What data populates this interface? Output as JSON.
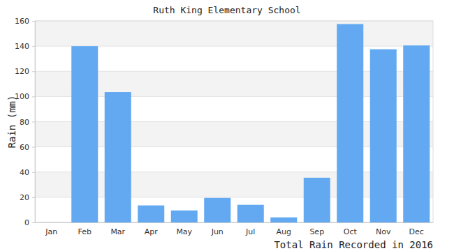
{
  "chart_data": {
    "type": "bar",
    "title": "Ruth King Elementary School",
    "x_label": "Total Rain Recorded in 2016",
    "y_label": "Rain (mm)",
    "categories": [
      "Jan",
      "Feb",
      "Mar",
      "Apr",
      "May",
      "Jun",
      "Jul",
      "Aug",
      "Sep",
      "Oct",
      "Nov",
      "Dec"
    ],
    "values": [
      0,
      140,
      103.5,
      13.5,
      9.5,
      19.5,
      14,
      4,
      35.5,
      157.5,
      137.5,
      140.5
    ],
    "color": "#62a9f2",
    "ylim": [
      0,
      160
    ],
    "yticks": [
      0,
      20,
      40,
      60,
      80,
      100,
      120,
      140,
      160
    ],
    "grid": true
  }
}
